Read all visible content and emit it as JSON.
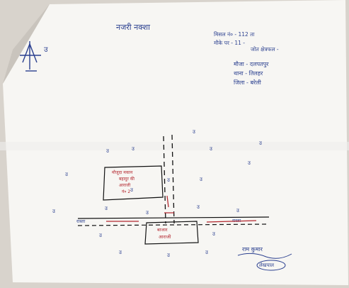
{
  "document": {
    "title": "नजरी नक्शा",
    "compass_label": "उ",
    "header_lines": [
      "मिसल नं० - 112 ता",
      "मौके पर - 11 -",
      "जोत क्षेत्रफल -"
    ],
    "location_lines": [
      "मौजा - दलपतपुर",
      "थाना - तिलहर",
      "जिला - बरेली"
    ],
    "map_labels": [
      "उ",
      "उ",
      "उ",
      "उ",
      "उ",
      "उ",
      "उ",
      "उ",
      "उ",
      "उ",
      "उ",
      "उ",
      "उ",
      "उ",
      "उ",
      "उ",
      "उ",
      "उ",
      "उ",
      "उ"
    ],
    "left_plot_text": [
      "मौजूदा मकान",
      "बहादुर की",
      "आराजी",
      "नं० 2"
    ],
    "bottom_plot_text": [
      "बाजार",
      "आराजी"
    ],
    "road_left": "रास्ता",
    "road_right": "रास्ता",
    "signature": "राम कुमार",
    "signature_subtitle": "लेखपाल"
  },
  "colors": {
    "ink_blue": "#2a3f8f",
    "ink_red": "#b3262e",
    "paper": "#f7f6f3"
  }
}
